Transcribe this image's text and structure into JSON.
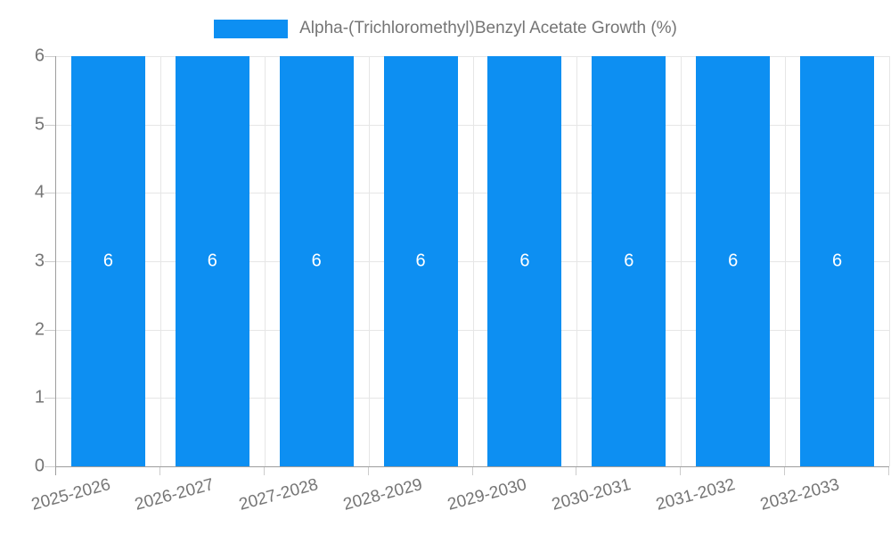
{
  "legend": {
    "label": "Alpha-(Trichloromethyl)Benzyl Acetate Growth (%)"
  },
  "colors": {
    "bar": "#0d8ff2",
    "text": "#757575",
    "grid": "#e6e6e6",
    "axis": "#9e9e9e",
    "tick": "#cccccc",
    "bar_label": "#ffffff",
    "background": "#ffffff"
  },
  "chart_data": {
    "type": "bar",
    "title": "Alpha-(Trichloromethyl)Benzyl Acetate Growth (%)",
    "categories": [
      "2025-2026",
      "2026-2027",
      "2027-2028",
      "2028-2029",
      "2029-2030",
      "2030-2031",
      "2031-2032",
      "2032-2033"
    ],
    "values": [
      6,
      6,
      6,
      6,
      6,
      6,
      6,
      6
    ],
    "value_labels": [
      6,
      6,
      6,
      6,
      6,
      6,
      6,
      6
    ],
    "xlabel": "",
    "ylabel": "",
    "ylim": [
      0,
      6
    ],
    "yticks": [
      0,
      1,
      2,
      3,
      4,
      5,
      6
    ],
    "grid": "on",
    "legend_position": "top-center",
    "x_tick_rotation_deg": -15,
    "bar_width_fraction": 0.71
  }
}
